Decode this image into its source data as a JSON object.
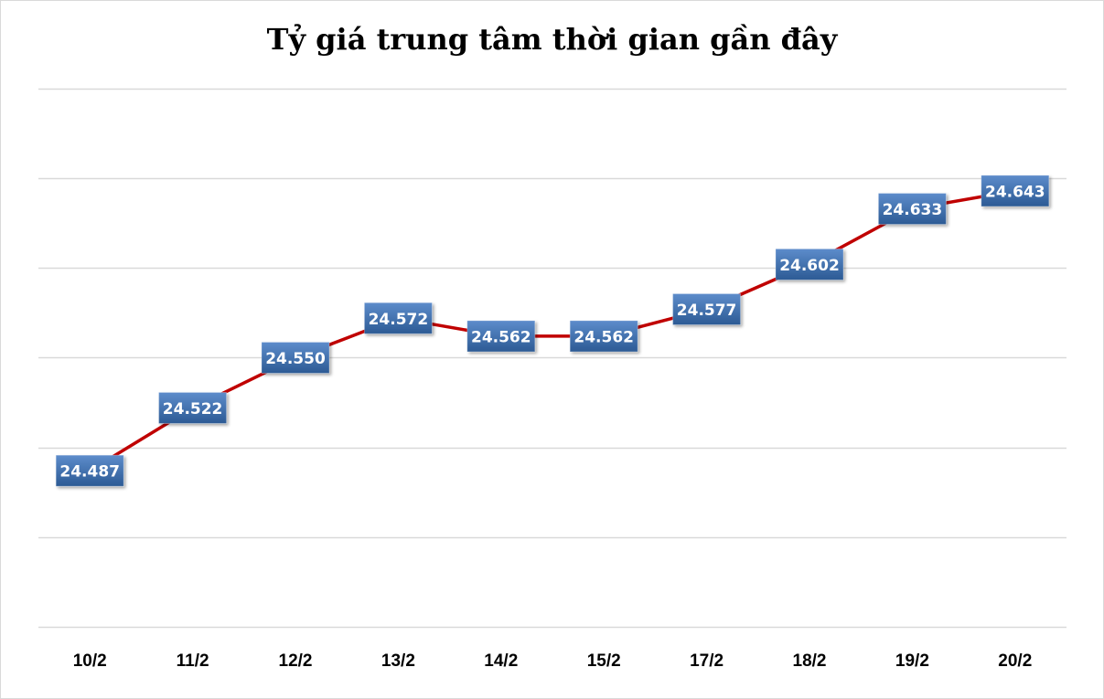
{
  "chart_data": {
    "type": "line",
    "title": "Tỷ giá trung tâm thời gian gần đây",
    "xlabel": "",
    "ylabel": "",
    "categories": [
      "10/2",
      "11/2",
      "12/2",
      "13/2",
      "14/2",
      "15/2",
      "17/2",
      "18/2",
      "19/2",
      "20/2"
    ],
    "series": [
      {
        "name": "Tỷ giá trung tâm",
        "values": [
          24.487,
          24.522,
          24.55,
          24.572,
          24.562,
          24.562,
          24.577,
          24.602,
          24.633,
          24.643
        ],
        "labels": [
          "24.487",
          "24.522",
          "24.550",
          "24.572",
          "24.562",
          "24.562",
          "24.577",
          "24.602",
          "24.633",
          "24.643"
        ],
        "color": "#c00000"
      }
    ],
    "ylim": [
      24.4,
      24.7
    ],
    "ytick_step": 0.05,
    "y_axis_labels_visible": false,
    "grid": true,
    "legend": "none",
    "data_label_style": {
      "background": "#3f6fa8",
      "text_color": "#ffffff"
    }
  },
  "colors": {
    "line": "#c00000",
    "label_bg_top": "#5b8bc9",
    "label_bg_bottom": "#2f5d96",
    "grid": "#d9d9d9"
  }
}
